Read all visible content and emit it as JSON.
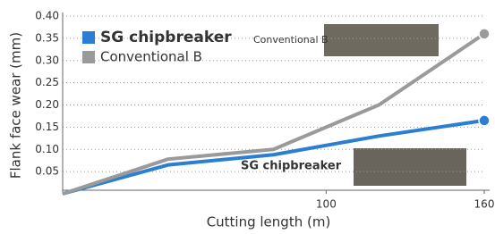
{
  "chart_data": {
    "type": "line",
    "x_label": "Cutting length (m)",
    "y_label": "Flank face wear (mm)",
    "x": [
      0,
      40,
      80,
      120,
      160
    ],
    "series": [
      {
        "name": "SG chipbreaker",
        "color": "#2a7fd4",
        "values": [
          0,
          0.065,
          0.088,
          0.13,
          0.165
        ]
      },
      {
        "name": "Conventional B",
        "color": "#9a9a9a",
        "values": [
          0,
          0.078,
          0.1,
          0.2,
          0.36
        ]
      }
    ],
    "xlim": [
      0,
      160
    ],
    "xticks": [
      100,
      160
    ],
    "ylim": [
      0,
      0.4
    ],
    "yticks": [
      0.05,
      {
        "value": 0.1,
        "label": "0.10"
      },
      0.15,
      {
        "value": 0.2,
        "label": "0.20"
      },
      0.25,
      {
        "value": 0.3,
        "label": "0.30"
      },
      0.35,
      {
        "value": 0.4,
        "label": "0.40"
      }
    ],
    "grid": true,
    "annotations": [
      "Conventional B",
      "SG chipbreaker"
    ]
  }
}
